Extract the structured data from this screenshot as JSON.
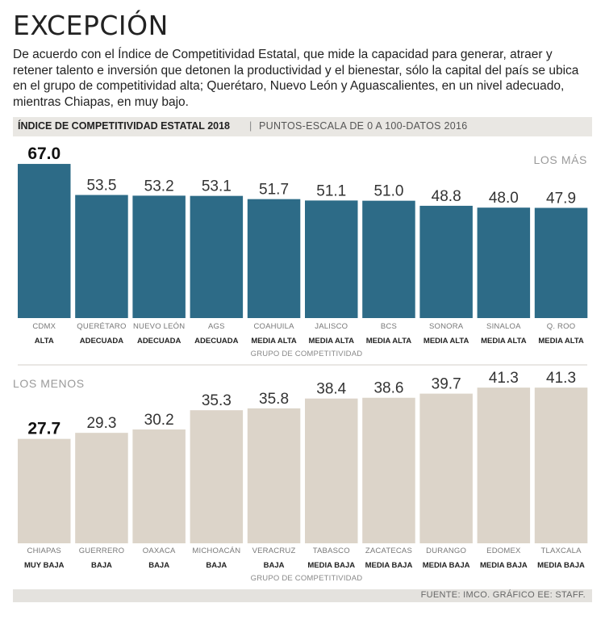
{
  "title": "EXCEPCIÓN",
  "intro": "De acuerdo con el Índice de Competitividad Estatal, que mide la capacidad para generar, atraer y retener talento e inversión que detonen la productividad y el bienestar, sólo la capital del país se ubica en el grupo de competitividad alta; Querétaro, Nuevo León y Aguascalientes, en un nivel adecuado, mientras Chiapas, en muy bajo.",
  "header": {
    "title": "ÍNDICE DE COMPETITIVIDAD ESTATAL 2018",
    "separator": "|",
    "subtitle": "PUNTOS-ESCALA DE 0 A 100-DATOS 2016"
  },
  "source": "FUENTE: IMCO. GRÁFICO EE: STAFF.",
  "colors": {
    "top_bar": "#2d6b87",
    "bottom_bar": "#dcd4c9",
    "divider": "#d3cfc9",
    "section_label": "#9a9a9a"
  },
  "chart_data": [
    {
      "type": "bar",
      "title": "LOS MÁS",
      "group_label": "GRUPO DE COMPETITIVIDAD",
      "categories": [
        "CDMX",
        "QUERÉTARO",
        "NUEVO LEÓN",
        "AGS",
        "COAHUILA",
        "JALISCO",
        "BCS",
        "SONORA",
        "SINALOA",
        "Q. ROO"
      ],
      "values": [
        67.0,
        53.5,
        53.2,
        53.1,
        51.7,
        51.1,
        51.0,
        48.8,
        48.0,
        47.9
      ],
      "value_labels": [
        "67.0",
        "53.5",
        "53.2",
        "53.1",
        "51.7",
        "51.1",
        "51.0",
        "48.8",
        "48.0",
        "47.9"
      ],
      "groups": [
        "ALTA",
        "ADECUADA",
        "ADECUADA",
        "ADECUADA",
        "MEDIA ALTA",
        "MEDIA ALTA",
        "MEDIA ALTA",
        "MEDIA ALTA",
        "MEDIA ALTA",
        "MEDIA ALTA"
      ],
      "highlight_index": 0,
      "ylim": [
        0,
        100
      ]
    },
    {
      "type": "bar",
      "title": "LOS MENOS",
      "group_label": "GRUPO DE COMPETITIVIDAD",
      "categories": [
        "CHIAPAS",
        "GUERRERO",
        "OAXACA",
        "MICHOACÁN",
        "VERACRUZ",
        "TABASCO",
        "ZACATECAS",
        "DURANGO",
        "EDOMEX",
        "TLAXCALA"
      ],
      "values": [
        27.7,
        29.3,
        30.2,
        35.3,
        35.8,
        38.4,
        38.6,
        39.7,
        41.3,
        41.3
      ],
      "value_labels": [
        "27.7",
        "29.3",
        "30.2",
        "35.3",
        "35.8",
        "38.4",
        "38.6",
        "39.7",
        "41.3",
        "41.3"
      ],
      "groups": [
        "MUY BAJA",
        "BAJA",
        "BAJA",
        "BAJA",
        "BAJA",
        "MEDIA BAJA",
        "MEDIA BAJA",
        "MEDIA BAJA",
        "MEDIA BAJA",
        "MEDIA BAJA"
      ],
      "highlight_index": 0,
      "ylim": [
        0,
        100
      ]
    }
  ]
}
